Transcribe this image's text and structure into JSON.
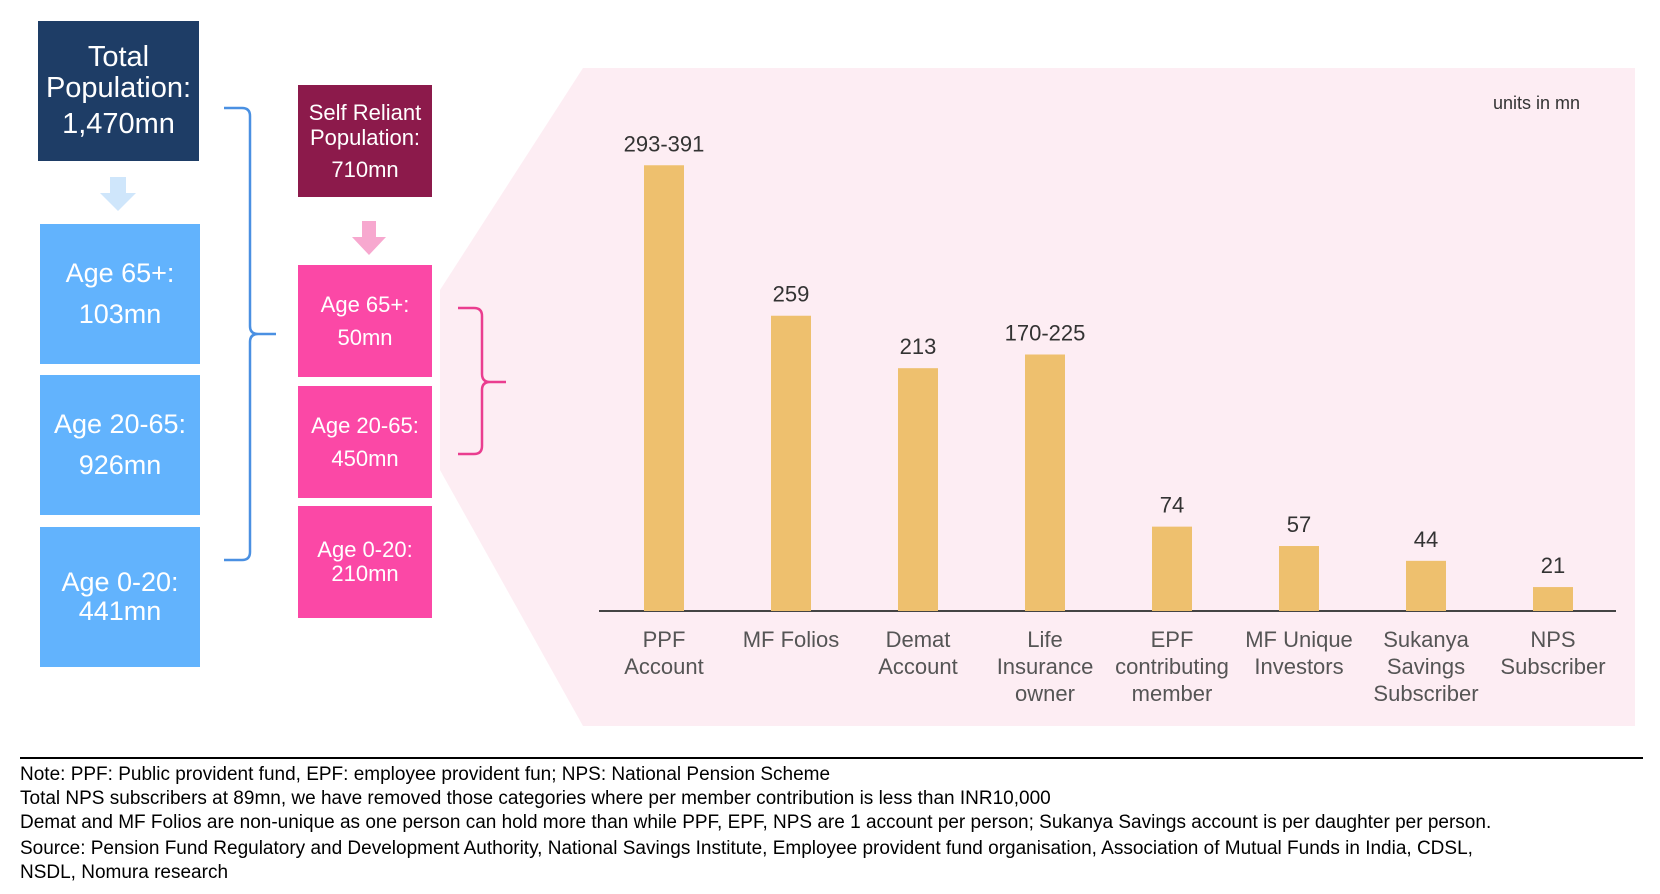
{
  "flow": {
    "total": {
      "title": "Total",
      "line2": "Population:",
      "value": "1,470mn"
    },
    "age_groups": [
      {
        "label": "Age 65+:",
        "value": "103mn"
      },
      {
        "label": "Age 20-65:",
        "value": "926mn"
      },
      {
        "label": "Age 0-20:",
        "value": "441mn"
      }
    ],
    "self_reliant": {
      "line1": "Self Reliant",
      "line2": "Population:",
      "value": "710mn"
    },
    "self_age_groups": [
      {
        "label": "Age 65+:",
        "value": "50mn"
      },
      {
        "label": "Age 20-65:",
        "value": "450mn"
      },
      {
        "label": "Age 0-20:",
        "value": "210mn"
      }
    ]
  },
  "colors": {
    "navy": "#1e3d66",
    "blue": "#62b3fd",
    "wine": "#8c1a4b",
    "pink": "#fb48a6",
    "panel": "#fdedf3",
    "bar": "#eec06e",
    "bracket_blue": "#4a90e2",
    "bracket_pink": "#ea3d8f"
  },
  "chart_data": {
    "type": "bar",
    "units_note": "units in mn",
    "categories": [
      [
        "PPF",
        "Account"
      ],
      [
        "MF Folios"
      ],
      [
        "Demat",
        "Account"
      ],
      [
        "Life",
        "Insurance",
        "owner"
      ],
      [
        "EPF",
        "contributing",
        "member"
      ],
      [
        "MF Unique",
        "Investors"
      ],
      [
        "Sukanya",
        "Savings",
        "Subscriber"
      ],
      [
        "NPS",
        "Subscriber"
      ]
    ],
    "values": [
      391,
      259,
      213,
      225,
      74,
      57,
      44,
      21
    ],
    "range_low": [
      293,
      null,
      null,
      170,
      null,
      null,
      null,
      null
    ],
    "data_labels": [
      "293-391",
      "259",
      "213",
      "170-225",
      "74",
      "57",
      "44",
      "21"
    ],
    "ylim": [
      0,
      400
    ],
    "grid": false
  },
  "notes": [
    "Note: PPF: Public provident fund, EPF: employee provident fun; NPS: National Pension Scheme",
    "Total NPS subscribers at 89mn, we have removed those categories where per member contribution is less than INR10,000",
    "Demat and MF Folios are non-unique as one person can hold more than while PPF, EPF, NPS are 1 account per person; Sukanya Savings account is per daughter per person.",
    "Source: Pension Fund Regulatory and Development Authority, National Savings Institute, Employee provident fund organisation, Association of Mutual Funds in India, CDSL,",
    "NSDL, Nomura research"
  ]
}
